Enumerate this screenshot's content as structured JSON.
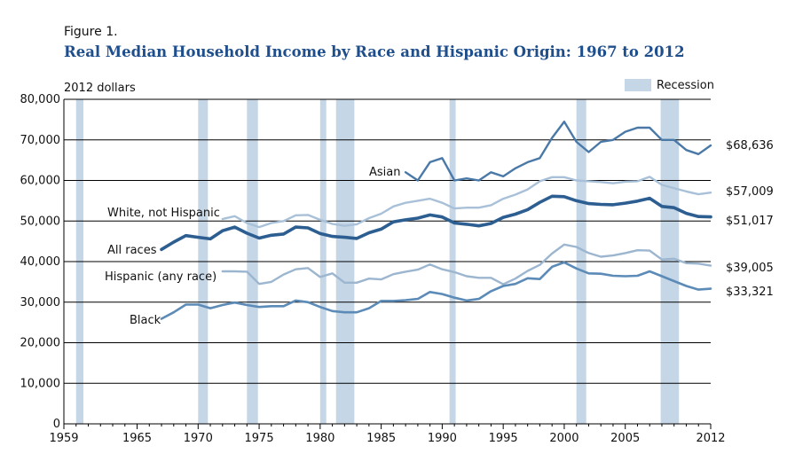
{
  "figure_label": "Figure 1.",
  "title": "Real Median Household Income by Race and Hispanic Origin: 1967 to 2012",
  "colors": {
    "recession": "#c5d6e6",
    "asian": "#4a79a8",
    "white_not_hispanic": "#a9c1d8",
    "all_races": "#2d5e91",
    "hispanic": "#9cb6d0",
    "black": "#5c8bb8",
    "grid": "#000000"
  },
  "chart_data": {
    "type": "line",
    "ylabel": "2012 dollars",
    "xlim": [
      1959,
      2012
    ],
    "ylim": [
      0,
      80000
    ],
    "xticks": [
      1959,
      1965,
      1970,
      1975,
      1980,
      1985,
      1990,
      1995,
      2000,
      2005,
      2012
    ],
    "xtick_labels": [
      "1959",
      "1965",
      "1970",
      "1975",
      "1980",
      "1985",
      "1990",
      "1995",
      "2000",
      "2005",
      "2012"
    ],
    "yticks": [
      0,
      10000,
      20000,
      30000,
      40000,
      50000,
      60000,
      70000,
      80000
    ],
    "ytick_labels": [
      "0",
      "10,000",
      "20,000",
      "30,000",
      "40,000",
      "50,000",
      "60,000",
      "70,000",
      "80,000"
    ],
    "grid": "horizontal",
    "legend": {
      "label": "Recession",
      "position": "top-right"
    },
    "recessions": [
      [
        1960,
        1960.6
      ],
      [
        1970,
        1970.8
      ],
      [
        1974,
        1974.9
      ],
      [
        1980,
        1980.5
      ],
      [
        1981.3,
        1982.8
      ],
      [
        1990.6,
        1991.1
      ],
      [
        2001,
        2001.8
      ],
      [
        2007.9,
        2009.4
      ]
    ],
    "series": [
      {
        "name": "Asian",
        "end_label": "$68,636",
        "x": [
          1987,
          1988,
          1989,
          1990,
          1991,
          1992,
          1993,
          1994,
          1995,
          1996,
          1997,
          1998,
          1999,
          2000,
          2001,
          2002,
          2003,
          2004,
          2005,
          2006,
          2007,
          2008,
          2009,
          2010,
          2011,
          2012
        ],
        "y": [
          62000,
          60000,
          64500,
          65500,
          60000,
          60500,
          60000,
          62000,
          61000,
          63000,
          64500,
          65500,
          70500,
          74500,
          69500,
          67000,
          69500,
          70000,
          72000,
          73000,
          73000,
          70000,
          70000,
          67500,
          66500,
          68636
        ]
      },
      {
        "name": "White, not Hispanic",
        "end_label": "$57,009",
        "x": [
          1972,
          1973,
          1974,
          1975,
          1976,
          1977,
          1978,
          1979,
          1980,
          1981,
          1982,
          1983,
          1984,
          1985,
          1986,
          1987,
          1988,
          1989,
          1990,
          1991,
          1992,
          1993,
          1994,
          1995,
          1996,
          1997,
          1998,
          1999,
          2000,
          2001,
          2002,
          2003,
          2004,
          2005,
          2006,
          2007,
          2008,
          2009,
          2010,
          2011,
          2012
        ],
        "y": [
          50500,
          51200,
          49500,
          48500,
          49500,
          50000,
          51400,
          51500,
          50300,
          49300,
          48800,
          49200,
          50700,
          51800,
          53600,
          54500,
          55000,
          55500,
          54500,
          53100,
          53300,
          53300,
          53900,
          55500,
          56500,
          57800,
          59800,
          60800,
          60800,
          60000,
          59800,
          59600,
          59300,
          59700,
          59800,
          60900,
          58900,
          58100,
          57300,
          56600,
          57009
        ]
      },
      {
        "name": "All races",
        "end_label": "$51,017",
        "x": [
          1967,
          1968,
          1969,
          1970,
          1971,
          1972,
          1973,
          1974,
          1975,
          1976,
          1977,
          1978,
          1979,
          1980,
          1981,
          1982,
          1983,
          1984,
          1985,
          1986,
          1987,
          1988,
          1989,
          1990,
          1991,
          1992,
          1993,
          1994,
          1995,
          1996,
          1997,
          1998,
          1999,
          2000,
          2001,
          2002,
          2003,
          2004,
          2005,
          2006,
          2007,
          2008,
          2009,
          2010,
          2011,
          2012
        ],
        "y": [
          43000,
          44800,
          46400,
          46000,
          45600,
          47600,
          48500,
          47000,
          45800,
          46500,
          46800,
          48500,
          48300,
          46900,
          46200,
          46000,
          45700,
          47100,
          48000,
          49800,
          50300,
          50700,
          51500,
          51000,
          49500,
          49200,
          48800,
          49400,
          50900,
          51700,
          52800,
          54600,
          56100,
          56000,
          55000,
          54300,
          54100,
          54000,
          54400,
          54900,
          55600,
          53600,
          53300,
          51900,
          51100,
          51017
        ]
      },
      {
        "name": "Hispanic (any race)",
        "end_label": "$39,005",
        "x": [
          1972,
          1973,
          1974,
          1975,
          1976,
          1977,
          1978,
          1979,
          1980,
          1981,
          1982,
          1983,
          1984,
          1985,
          1986,
          1987,
          1988,
          1989,
          1990,
          1991,
          1992,
          1993,
          1994,
          1995,
          1996,
          1997,
          1998,
          1999,
          2000,
          2001,
          2002,
          2003,
          2004,
          2005,
          2006,
          2007,
          2008,
          2009,
          2010,
          2011,
          2012
        ],
        "y": [
          37600,
          37600,
          37500,
          34500,
          35000,
          36800,
          38100,
          38400,
          36200,
          37100,
          34800,
          34800,
          35800,
          35600,
          36900,
          37500,
          38000,
          39300,
          38100,
          37400,
          36400,
          36000,
          36000,
          34400,
          35800,
          37700,
          39200,
          42000,
          44200,
          43600,
          42100,
          41200,
          41500,
          42100,
          42800,
          42700,
          40500,
          40700,
          39600,
          39500,
          39005
        ]
      },
      {
        "name": "Black",
        "end_label": "$33,321",
        "x": [
          1967,
          1968,
          1969,
          1970,
          1971,
          1972,
          1973,
          1974,
          1975,
          1976,
          1977,
          1978,
          1979,
          1980,
          1981,
          1982,
          1983,
          1984,
          1985,
          1986,
          1987,
          1988,
          1989,
          1990,
          1991,
          1992,
          1993,
          1994,
          1995,
          1996,
          1997,
          1998,
          1999,
          2000,
          2001,
          2002,
          2003,
          2004,
          2005,
          2006,
          2007,
          2008,
          2009,
          2010,
          2011,
          2012
        ],
        "y": [
          25900,
          27500,
          29400,
          29400,
          28500,
          29300,
          29900,
          29300,
          28800,
          29000,
          29000,
          30400,
          30000,
          28800,
          27800,
          27500,
          27500,
          28500,
          30300,
          30300,
          30500,
          30800,
          32500,
          32000,
          31100,
          30400,
          30800,
          32700,
          34000,
          34500,
          35900,
          35700,
          38700,
          39800,
          38300,
          37100,
          37000,
          36500,
          36400,
          36500,
          37600,
          36400,
          35200,
          34000,
          33100,
          33321
        ]
      }
    ]
  }
}
